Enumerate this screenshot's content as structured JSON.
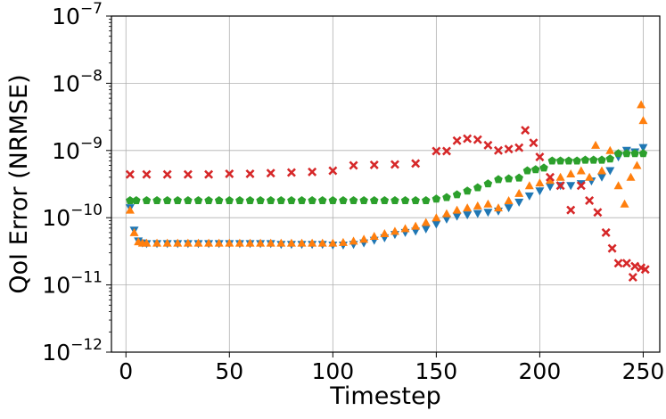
{
  "chart_data": {
    "type": "scatter",
    "title": "",
    "xlabel": "Timestep",
    "ylabel": "QoI Error (NRMSE)",
    "xlim": [
      -7,
      258
    ],
    "ylim": [
      1e-12,
      1e-07
    ],
    "yscale": "log",
    "grid": true,
    "xticks": [
      {
        "value": 0,
        "label": "0"
      },
      {
        "value": 50,
        "label": "50"
      },
      {
        "value": 100,
        "label": "100"
      },
      {
        "value": 150,
        "label": "150"
      },
      {
        "value": 200,
        "label": "200"
      },
      {
        "value": 250,
        "label": "250"
      }
    ],
    "yticks": [
      {
        "value": 1e-12,
        "base": "10",
        "exp": "−12"
      },
      {
        "value": 1e-11,
        "base": "10",
        "exp": "−11"
      },
      {
        "value": 1e-10,
        "base": "10",
        "exp": "−10"
      },
      {
        "value": 1e-09,
        "base": "10",
        "exp": "−9"
      },
      {
        "value": 1e-08,
        "base": "10",
        "exp": "−8"
      },
      {
        "value": 1e-07,
        "base": "10",
        "exp": "−7"
      }
    ],
    "series": [
      {
        "marker": "triangle-down",
        "color": "#1f77b4",
        "points": [
          [
            2,
            1.4e-10
          ],
          [
            4,
            6.5e-11
          ],
          [
            6,
            4.5e-11
          ],
          [
            8,
            4.2e-11
          ],
          [
            10,
            4.1e-11
          ],
          [
            15,
            4.1e-11
          ],
          [
            20,
            4.1e-11
          ],
          [
            25,
            4.1e-11
          ],
          [
            30,
            4.1e-11
          ],
          [
            35,
            4.1e-11
          ],
          [
            40,
            4.1e-11
          ],
          [
            45,
            4.1e-11
          ],
          [
            50,
            4.1e-11
          ],
          [
            55,
            4.1e-11
          ],
          [
            60,
            4.1e-11
          ],
          [
            65,
            4.1e-11
          ],
          [
            70,
            4.1e-11
          ],
          [
            75,
            4e-11
          ],
          [
            80,
            4e-11
          ],
          [
            85,
            4e-11
          ],
          [
            90,
            4e-11
          ],
          [
            95,
            4e-11
          ],
          [
            100,
            3.9e-11
          ],
          [
            105,
            3.9e-11
          ],
          [
            110,
            4e-11
          ],
          [
            115,
            4.2e-11
          ],
          [
            120,
            4.6e-11
          ],
          [
            125,
            5e-11
          ],
          [
            130,
            5.6e-11
          ],
          [
            135,
            6e-11
          ],
          [
            140,
            6.3e-11
          ],
          [
            145,
            6.8e-11
          ],
          [
            150,
            8e-11
          ],
          [
            155,
            9.5e-11
          ],
          [
            160,
            1.05e-10
          ],
          [
            165,
            1.1e-10
          ],
          [
            170,
            1.15e-10
          ],
          [
            175,
            1.2e-10
          ],
          [
            180,
            1.25e-10
          ],
          [
            185,
            1.4e-10
          ],
          [
            190,
            1.7e-10
          ],
          [
            195,
            2.1e-10
          ],
          [
            200,
            2.5e-10
          ],
          [
            205,
            2.9e-10
          ],
          [
            210,
            3e-10
          ],
          [
            215,
            3e-10
          ],
          [
            220,
            3.2e-10
          ],
          [
            225,
            3.5e-10
          ],
          [
            230,
            4e-10
          ],
          [
            234,
            5e-10
          ],
          [
            238,
            8e-10
          ],
          [
            242,
            1e-09
          ],
          [
            246,
            9.5e-10
          ],
          [
            250,
            1.1e-09
          ]
        ]
      },
      {
        "marker": "triangle-up",
        "color": "#ff7f0e",
        "points": [
          [
            2,
            1.3e-10
          ],
          [
            4,
            6e-11
          ],
          [
            6,
            4.4e-11
          ],
          [
            8,
            4.2e-11
          ],
          [
            10,
            4.2e-11
          ],
          [
            15,
            4.2e-11
          ],
          [
            20,
            4.2e-11
          ],
          [
            25,
            4.2e-11
          ],
          [
            30,
            4.2e-11
          ],
          [
            35,
            4.2e-11
          ],
          [
            40,
            4.2e-11
          ],
          [
            45,
            4.2e-11
          ],
          [
            50,
            4.2e-11
          ],
          [
            55,
            4.2e-11
          ],
          [
            60,
            4.2e-11
          ],
          [
            65,
            4.2e-11
          ],
          [
            70,
            4.2e-11
          ],
          [
            75,
            4.2e-11
          ],
          [
            80,
            4.2e-11
          ],
          [
            85,
            4.2e-11
          ],
          [
            90,
            4.2e-11
          ],
          [
            95,
            4.2e-11
          ],
          [
            100,
            4.2e-11
          ],
          [
            105,
            4.3e-11
          ],
          [
            110,
            4.5e-11
          ],
          [
            115,
            4.8e-11
          ],
          [
            120,
            5.3e-11
          ],
          [
            125,
            5.8e-11
          ],
          [
            130,
            6.3e-11
          ],
          [
            135,
            6.9e-11
          ],
          [
            140,
            7.5e-11
          ],
          [
            145,
            8.5e-11
          ],
          [
            150,
            1e-10
          ],
          [
            155,
            1.15e-10
          ],
          [
            160,
            1.3e-10
          ],
          [
            165,
            1.4e-10
          ],
          [
            170,
            1.5e-10
          ],
          [
            175,
            1.6e-10
          ],
          [
            180,
            1.4e-10
          ],
          [
            185,
            1.8e-10
          ],
          [
            190,
            2.3e-10
          ],
          [
            195,
            3e-10
          ],
          [
            200,
            3.3e-10
          ],
          [
            205,
            3.6e-10
          ],
          [
            210,
            4e-10
          ],
          [
            215,
            4.5e-10
          ],
          [
            220,
            5e-10
          ],
          [
            224,
            4e-10
          ],
          [
            227,
            1.2e-09
          ],
          [
            230,
            5e-10
          ],
          [
            234,
            1e-09
          ],
          [
            238,
            3e-10
          ],
          [
            241,
            1.6e-10
          ],
          [
            244,
            4e-10
          ],
          [
            247,
            6e-10
          ],
          [
            249,
            4.8e-09
          ],
          [
            250,
            2.8e-09
          ]
        ]
      },
      {
        "marker": "pentagon",
        "color": "#2ca02c",
        "points": [
          [
            2,
            1.8e-10
          ],
          [
            5,
            1.8e-10
          ],
          [
            10,
            1.8e-10
          ],
          [
            15,
            1.8e-10
          ],
          [
            20,
            1.8e-10
          ],
          [
            25,
            1.8e-10
          ],
          [
            30,
            1.8e-10
          ],
          [
            35,
            1.8e-10
          ],
          [
            40,
            1.8e-10
          ],
          [
            45,
            1.8e-10
          ],
          [
            50,
            1.8e-10
          ],
          [
            55,
            1.8e-10
          ],
          [
            60,
            1.8e-10
          ],
          [
            65,
            1.8e-10
          ],
          [
            70,
            1.8e-10
          ],
          [
            75,
            1.8e-10
          ],
          [
            80,
            1.8e-10
          ],
          [
            85,
            1.8e-10
          ],
          [
            90,
            1.8e-10
          ],
          [
            95,
            1.8e-10
          ],
          [
            100,
            1.8e-10
          ],
          [
            105,
            1.8e-10
          ],
          [
            110,
            1.8e-10
          ],
          [
            115,
            1.8e-10
          ],
          [
            120,
            1.8e-10
          ],
          [
            125,
            1.8e-10
          ],
          [
            130,
            1.8e-10
          ],
          [
            135,
            1.8e-10
          ],
          [
            140,
            1.8e-10
          ],
          [
            145,
            1.8e-10
          ],
          [
            150,
            1.9e-10
          ],
          [
            155,
            2e-10
          ],
          [
            160,
            2.2e-10
          ],
          [
            165,
            2.5e-10
          ],
          [
            170,
            2.8e-10
          ],
          [
            175,
            3.2e-10
          ],
          [
            180,
            3.7e-10
          ],
          [
            185,
            3.8e-10
          ],
          [
            190,
            3.9e-10
          ],
          [
            194,
            5e-10
          ],
          [
            198,
            5.2e-10
          ],
          [
            202,
            5.5e-10
          ],
          [
            206,
            7e-10
          ],
          [
            210,
            7e-10
          ],
          [
            214,
            7e-10
          ],
          [
            218,
            7e-10
          ],
          [
            222,
            7.2e-10
          ],
          [
            226,
            7.2e-10
          ],
          [
            230,
            7.2e-10
          ],
          [
            234,
            7.5e-10
          ],
          [
            238,
            9e-10
          ],
          [
            242,
            9e-10
          ],
          [
            246,
            9e-10
          ],
          [
            250,
            9e-10
          ]
        ]
      },
      {
        "marker": "x",
        "color": "#d62728",
        "points": [
          [
            2,
            4.4e-10
          ],
          [
            10,
            4.4e-10
          ],
          [
            20,
            4.4e-10
          ],
          [
            30,
            4.4e-10
          ],
          [
            40,
            4.4e-10
          ],
          [
            50,
            4.5e-10
          ],
          [
            60,
            4.5e-10
          ],
          [
            70,
            4.6e-10
          ],
          [
            80,
            4.7e-10
          ],
          [
            90,
            4.8e-10
          ],
          [
            100,
            5e-10
          ],
          [
            110,
            6e-10
          ],
          [
            120,
            6.1e-10
          ],
          [
            130,
            6.2e-10
          ],
          [
            140,
            6.4e-10
          ],
          [
            150,
            9.8e-10
          ],
          [
            155,
            9.8e-10
          ],
          [
            160,
            1.4e-09
          ],
          [
            165,
            1.5e-09
          ],
          [
            170,
            1.45e-09
          ],
          [
            175,
            1.2e-09
          ],
          [
            180,
            1e-09
          ],
          [
            185,
            1.05e-09
          ],
          [
            190,
            1.1e-09
          ],
          [
            193,
            2e-09
          ],
          [
            197,
            1.3e-09
          ],
          [
            200,
            8e-10
          ],
          [
            205,
            4e-10
          ],
          [
            210,
            3e-10
          ],
          [
            215,
            1.3e-10
          ],
          [
            220,
            3e-10
          ],
          [
            224,
            1.8e-10
          ],
          [
            228,
            1.2e-10
          ],
          [
            232,
            6e-11
          ],
          [
            235,
            3.5e-11
          ],
          [
            238,
            2.1e-11
          ],
          [
            242,
            2.1e-11
          ],
          [
            246,
            1.9e-11
          ],
          [
            249,
            1.8e-11
          ],
          [
            251,
            1.7e-11
          ],
          [
            245,
            1.3e-11
          ]
        ]
      }
    ]
  }
}
